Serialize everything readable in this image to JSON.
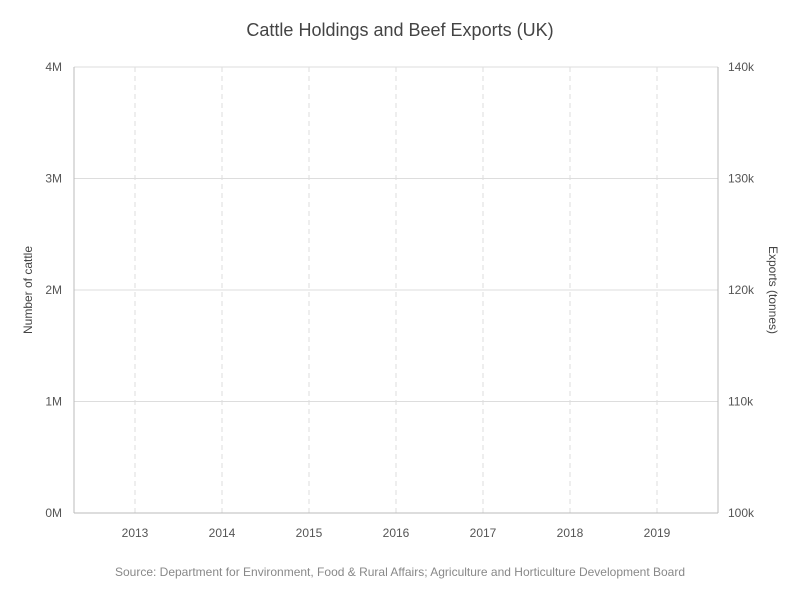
{
  "chart_data": {
    "type": "line",
    "title": "Cattle Holdings and Beef Exports (UK)",
    "source": "Source: Department for Environment, Food & Rural Affairs; Agriculture and Horticulture Development Board",
    "categories": [
      "2013",
      "2014",
      "2015",
      "2016",
      "2017",
      "2018",
      "2019"
    ],
    "y_left": {
      "label": "Number of cattle",
      "range": [
        0,
        4000000
      ],
      "ticks": [
        "0M",
        "1M",
        "2M",
        "3M",
        "4M"
      ]
    },
    "y_right": {
      "label": "Exports (tonnes)",
      "range": [
        100000,
        140000
      ],
      "ticks": [
        "100k",
        "110k",
        "120k",
        "130k",
        "140k"
      ]
    },
    "series": [],
    "grid": true,
    "colors": {
      "grid": "#dddddd",
      "axis": "#bbbbbb",
      "text": "#555555"
    }
  }
}
